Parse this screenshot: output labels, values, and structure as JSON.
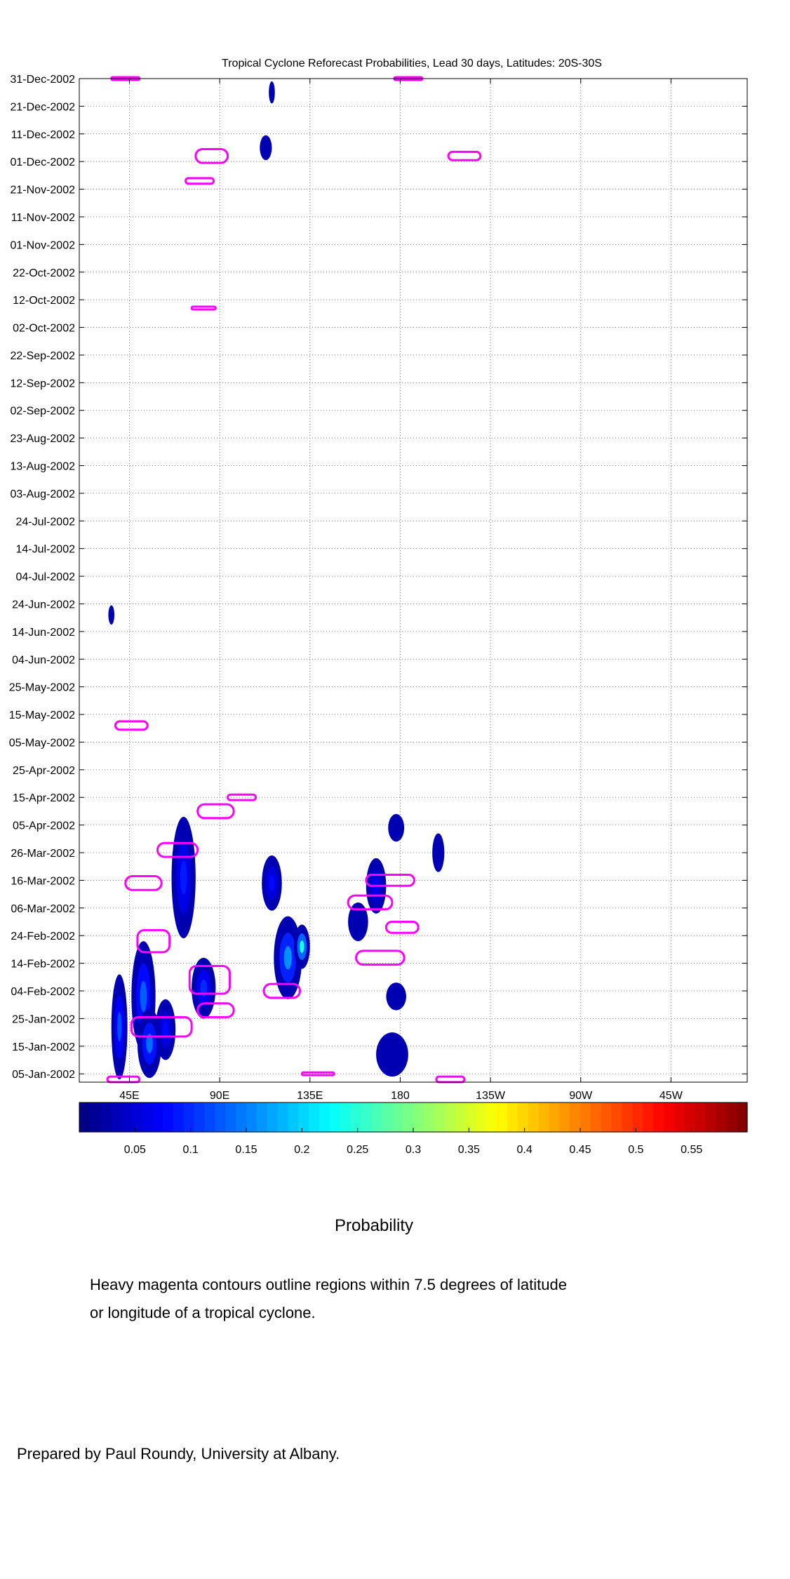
{
  "chart_data": {
    "type": "heatmap",
    "title": "Tropical Cyclone Reforecast Probabilities, Lead 30 days, Latitudes: 20S-30S",
    "x_ticks": [
      "45E",
      "90E",
      "135E",
      "180",
      "135W",
      "90W",
      "45W"
    ],
    "x_tick_values": [
      45,
      90,
      135,
      180,
      225,
      270,
      315
    ],
    "xlim": [
      20,
      353
    ],
    "y_ticks": [
      "31-Dec-2002",
      "21-Dec-2002",
      "11-Dec-2002",
      "01-Dec-2002",
      "21-Nov-2002",
      "11-Nov-2002",
      "01-Nov-2002",
      "22-Oct-2002",
      "12-Oct-2002",
      "02-Oct-2002",
      "22-Sep-2002",
      "12-Sep-2002",
      "02-Sep-2002",
      "23-Aug-2002",
      "13-Aug-2002",
      "03-Aug-2002",
      "24-Jul-2002",
      "14-Jul-2002",
      "04-Jul-2002",
      "24-Jun-2002",
      "14-Jun-2002",
      "04-Jun-2002",
      "25-May-2002",
      "15-May-2002",
      "05-May-2002",
      "25-Apr-2002",
      "15-Apr-2002",
      "05-Apr-2002",
      "26-Mar-2002",
      "16-Mar-2002",
      "06-Mar-2002",
      "24-Feb-2002",
      "14-Feb-2002",
      "04-Feb-2002",
      "25-Jan-2002",
      "15-Jan-2002",
      "05-Jan-2002"
    ],
    "ylim": [
      "02-Jan-2002",
      "31-Dec-2002"
    ],
    "grid": true,
    "colorbar": {
      "label": "Probability",
      "ticks": [
        "0.05",
        "0.1",
        "0.15",
        "0.2",
        "0.25",
        "0.3",
        "0.35",
        "0.4",
        "0.45",
        "0.5",
        "0.55"
      ],
      "tick_values": [
        0.05,
        0.1,
        0.15,
        0.2,
        0.25,
        0.3,
        0.35,
        0.4,
        0.45,
        0.5,
        0.55
      ],
      "range": [
        0,
        0.6
      ],
      "colormap": "jet"
    },
    "probability_regions": [
      {
        "lon": 40,
        "lon_span": 8,
        "date": "22-Jan-2002",
        "days": 38,
        "p": 0.12
      },
      {
        "lon": 52,
        "lon_span": 12,
        "date": "02-Feb-2002",
        "days": 40,
        "p": 0.13
      },
      {
        "lon": 55,
        "lon_span": 12,
        "date": "16-Jan-2002",
        "days": 25,
        "p": 0.14
      },
      {
        "lon": 63,
        "lon_span": 10,
        "date": "21-Jan-2002",
        "days": 22,
        "p": 0.08
      },
      {
        "lon": 72,
        "lon_span": 12,
        "date": "17-Mar-2002",
        "days": 44,
        "p": 0.09
      },
      {
        "lon": 82,
        "lon_span": 12,
        "date": "05-Feb-2002",
        "days": 22,
        "p": 0.1
      },
      {
        "lon": 124,
        "lon_span": 14,
        "date": "16-Feb-2002",
        "days": 30,
        "p": 0.16
      },
      {
        "lon": 131,
        "lon_span": 8,
        "date": "20-Feb-2002",
        "days": 16,
        "p": 0.24
      },
      {
        "lon": 116,
        "lon_span": 10,
        "date": "15-Mar-2002",
        "days": 20,
        "p": 0.08
      },
      {
        "lon": 168,
        "lon_span": 10,
        "date": "14-Mar-2002",
        "days": 20,
        "p": 0.07
      },
      {
        "lon": 176,
        "lon_span": 16,
        "date": "12-Jan-2002",
        "days": 16,
        "p": 0.06
      },
      {
        "lon": 178,
        "lon_span": 10,
        "date": "02-Feb-2002",
        "days": 10,
        "p": 0.06
      },
      {
        "lon": 178,
        "lon_span": 8,
        "date": "04-Apr-2002",
        "days": 10,
        "p": 0.06
      },
      {
        "lon": 199,
        "lon_span": 6,
        "date": "26-Mar-2002",
        "days": 14,
        "p": 0.06
      },
      {
        "lon": 159,
        "lon_span": 10,
        "date": "01-Mar-2002",
        "days": 14,
        "p": 0.06
      },
      {
        "lon": 36,
        "lon_span": 3,
        "date": "20-Jun-2002",
        "days": 7,
        "p": 0.05
      },
      {
        "lon": 113,
        "lon_span": 6,
        "date": "06-Dec-2002",
        "days": 9,
        "p": 0.05
      },
      {
        "lon": 116,
        "lon_span": 3,
        "date": "26-Dec-2002",
        "days": 8,
        "p": 0.05
      }
    ],
    "cyclone_contours": [
      {
        "lon": 86,
        "lon_span": 16,
        "date": "03-Dec-2002",
        "days": 5
      },
      {
        "lon": 212,
        "lon_span": 16,
        "date": "03-Dec-2002",
        "days": 3
      },
      {
        "lon": 80,
        "lon_span": 14,
        "date": "24-Nov-2002",
        "days": 2
      },
      {
        "lon": 82,
        "lon_span": 12,
        "date": "09-Oct-2002",
        "days": 1
      },
      {
        "lon": 46,
        "lon_span": 16,
        "date": "11-May-2002",
        "days": 3
      },
      {
        "lon": 101,
        "lon_span": 14,
        "date": "15-Apr-2002",
        "days": 2
      },
      {
        "lon": 88,
        "lon_span": 18,
        "date": "10-Apr-2002",
        "days": 5
      },
      {
        "lon": 69,
        "lon_span": 20,
        "date": "27-Mar-2002",
        "days": 5
      },
      {
        "lon": 52,
        "lon_span": 18,
        "date": "15-Mar-2002",
        "days": 5
      },
      {
        "lon": 175,
        "lon_span": 24,
        "date": "16-Mar-2002",
        "days": 4
      },
      {
        "lon": 165,
        "lon_span": 22,
        "date": "08-Mar-2002",
        "days": 5
      },
      {
        "lon": 181,
        "lon_span": 16,
        "date": "27-Feb-2002",
        "days": 4
      },
      {
        "lon": 57,
        "lon_span": 16,
        "date": "22-Feb-2002",
        "days": 8
      },
      {
        "lon": 170,
        "lon_span": 24,
        "date": "16-Feb-2002",
        "days": 5
      },
      {
        "lon": 85,
        "lon_span": 20,
        "date": "08-Feb-2002",
        "days": 10
      },
      {
        "lon": 121,
        "lon_span": 18,
        "date": "04-Feb-2002",
        "days": 5
      },
      {
        "lon": 88,
        "lon_span": 18,
        "date": "28-Jan-2002",
        "days": 5
      },
      {
        "lon": 61,
        "lon_span": 30,
        "date": "22-Jan-2002",
        "days": 7
      },
      {
        "lon": 42,
        "lon_span": 16,
        "date": "03-Jan-2002",
        "days": 2
      },
      {
        "lon": 139,
        "lon_span": 16,
        "date": "05-Jan-2002",
        "days": 1
      },
      {
        "lon": 205,
        "lon_span": 14,
        "date": "03-Jan-2002",
        "days": 2
      },
      {
        "lon": 43,
        "lon_span": 14,
        "date": "31-Dec-2002",
        "days": 1
      },
      {
        "lon": 184,
        "lon_span": 14,
        "date": "31-Dec-2002",
        "days": 1
      }
    ]
  },
  "notes": {
    "line1": "Heavy magenta contours outline regions within 7.5 degrees of latitude",
    "line2": "or longitude of a tropical cyclone.",
    "prepared_by": "Prepared by Paul Roundy, University at Albany."
  }
}
